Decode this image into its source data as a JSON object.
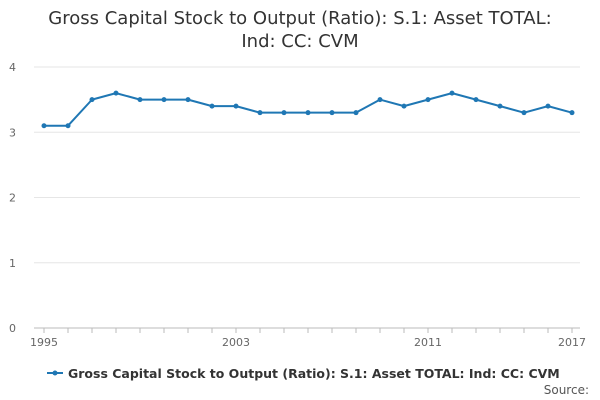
{
  "chart_data": {
    "type": "line",
    "title_lines": [
      "Gross Capital Stock to Output (Ratio): S.1: Asset TOTAL:",
      "Ind: CC: CVM"
    ],
    "xlabel": "",
    "ylabel": "",
    "x": [
      1995,
      1996,
      1997,
      1998,
      1999,
      2000,
      2001,
      2002,
      2003,
      2004,
      2005,
      2006,
      2007,
      2008,
      2009,
      2010,
      2011,
      2012,
      2013,
      2014,
      2015,
      2016,
      2017
    ],
    "x_tick_labels": [
      "1995",
      "2003",
      "2011",
      "2017"
    ],
    "x_tick_values": [
      1995,
      2003,
      2011,
      2017
    ],
    "y_ticks": [
      0,
      1,
      2,
      3,
      4
    ],
    "ylim": [
      0,
      4
    ],
    "xlim": [
      1995,
      2017
    ],
    "grid": "horizontal",
    "legend_position": "bottom",
    "series": [
      {
        "name": "Gross Capital Stock to Output (Ratio): S.1: Asset TOTAL: Ind: CC: CVM",
        "color": "#1f77b4",
        "values": [
          3.1,
          3.1,
          3.5,
          3.6,
          3.5,
          3.5,
          3.5,
          3.4,
          3.4,
          3.3,
          3.3,
          3.3,
          3.3,
          3.3,
          3.5,
          3.4,
          3.5,
          3.6,
          3.5,
          3.4,
          3.3,
          3.4,
          3.3
        ]
      }
    ],
    "source_label": "Source:"
  }
}
